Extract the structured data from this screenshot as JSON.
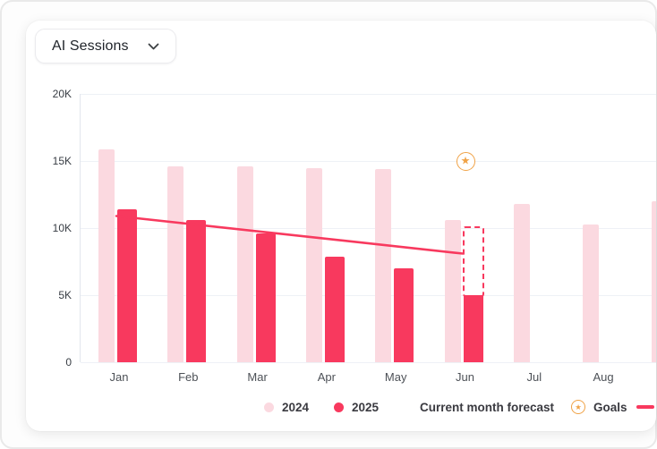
{
  "header": {
    "metric_selector": {
      "label": "AI Sessions"
    }
  },
  "chart_data": {
    "type": "bar",
    "title": "AI Sessions",
    "unit": "sessions, thousands (K)",
    "categories": [
      "Jan",
      "Feb",
      "Mar",
      "Apr",
      "May",
      "Jun",
      "Jul",
      "Aug",
      ""
    ],
    "series": [
      {
        "name": "2024",
        "color": "#FBD9E0",
        "values": [
          15.9,
          14.6,
          14.6,
          14.5,
          14.4,
          10.6,
          11.8,
          10.3,
          12.0
        ]
      },
      {
        "name": "2025",
        "color": "#F8395E",
        "values": [
          11.4,
          10.6,
          9.6,
          7.9,
          7.0,
          5.0,
          null,
          null,
          null
        ]
      }
    ],
    "forecast": {
      "category_index": 5,
      "from": 5.0,
      "to": 10.0,
      "style": "dashed-outline",
      "color": "#F8395E"
    },
    "trend_line": {
      "color": "#F8395E",
      "start": {
        "category_index": 0,
        "value": 10.9
      },
      "end": {
        "category_index": 5,
        "value": 8.1
      }
    },
    "goal_marker": {
      "category_index": 5,
      "value": 15.0,
      "color": "#F0A246",
      "icon": "star"
    },
    "y_axis": {
      "ylim": [
        0,
        20
      ],
      "ticks": [
        {
          "label": "20K",
          "value": 20
        },
        {
          "label": "15K",
          "value": 15
        },
        {
          "label": "10K",
          "value": 10
        },
        {
          "label": "5K",
          "value": 5
        },
        {
          "label": "0",
          "value": 0
        }
      ]
    },
    "grid": true,
    "legend_position": "bottom"
  },
  "legend": {
    "items": [
      {
        "label": "2024",
        "swatch": "dot",
        "color": "#FBD9E0"
      },
      {
        "label": "2025",
        "swatch": "dot",
        "color": "#F8395E"
      },
      {
        "label": "Current month forecast",
        "swatch": "none",
        "color": ""
      },
      {
        "label": "Goals",
        "swatch": "star-circle",
        "color": "#F0A246"
      },
      {
        "label": "",
        "swatch": "line",
        "color": "#F8395E"
      }
    ]
  },
  "colors": {
    "bar_2024": "#FBD9E0",
    "bar_2025": "#F8395E",
    "trend": "#F8395E",
    "goal": "#F0A246",
    "grid": "#EEF1F6",
    "axis_text": "#383D44"
  }
}
